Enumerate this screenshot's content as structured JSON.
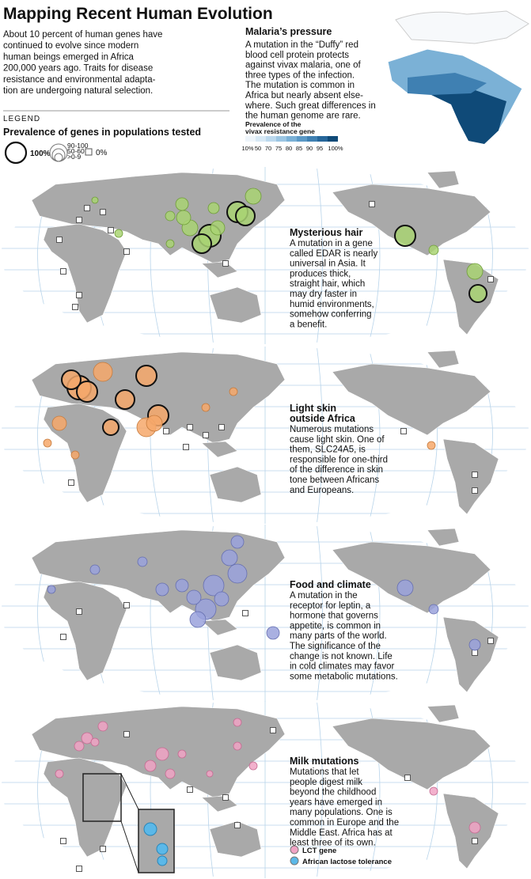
{
  "title": "Mapping Recent Human Evolution",
  "intro": [
    "About 10 percent of human genes have",
    "continued to evolve since modern",
    "human beings emerged in Africa",
    "200,000 years ago. Traits for disease",
    "resistance and environmental adapta-",
    "tion are undergoing natural selection."
  ],
  "legend": {
    "heading": "LEGEND",
    "title": "Prevalence of genes in populations tested",
    "full": "100%",
    "sizes": [
      "90-100",
      "50-60",
      ">0-9"
    ],
    "zero": "0%"
  },
  "malaria": {
    "heading": "Malaria’s pressure",
    "text": [
      "A mutation in the “Duffy” red",
      "blood cell protein protects",
      "against vivax malaria, one of",
      "three types of the infection.",
      "The mutation is common in",
      "Africa but nearly absent else-",
      "where. Such great differences in",
      "the human genome are rare."
    ],
    "scale_title": [
      "Prevalence of the",
      "vivax resistance gene"
    ],
    "scale_labels": [
      "10%",
      "50",
      "70",
      "75",
      "80",
      "85",
      "90",
      "95",
      "100%"
    ]
  },
  "panels": [
    {
      "heading": [
        "Mysterious hair"
      ],
      "text": [
        "A mutation in a gene",
        "called EDAR is nearly",
        "universal in Asia. It",
        "produces thick,",
        "straight hair, which",
        "may dry faster in",
        "humid environments,",
        "somehow conferring",
        "a benefit."
      ]
    },
    {
      "heading": [
        "Light skin",
        "outside Africa"
      ],
      "text": [
        "Numerous mutations",
        "cause light skin. One of",
        "them, SLC24A5, is",
        "responsible for one-third",
        "of the difference in skin",
        "tone between Africans",
        "and Europeans."
      ]
    },
    {
      "heading": [
        "Food and climate"
      ],
      "text": [
        "A mutation in the",
        "receptor for leptin, a",
        "hormone that governs",
        "appetite, is common in",
        "many parts of the world.",
        "The significance of the",
        "change is not known. Life",
        "in cold climates may favor",
        "some metabolic mutations."
      ]
    },
    {
      "heading": [
        "Milk mutations"
      ],
      "text": [
        "Mutations that let",
        "people digest milk",
        "beyond the childhood",
        "years have emerged in",
        "many populations. One is",
        "common in Europe and the",
        "Middle East. Africa has at",
        "least three of its own."
      ]
    }
  ],
  "milk_legend": [
    "LCT gene",
    "African lactose tolerance"
  ]
}
